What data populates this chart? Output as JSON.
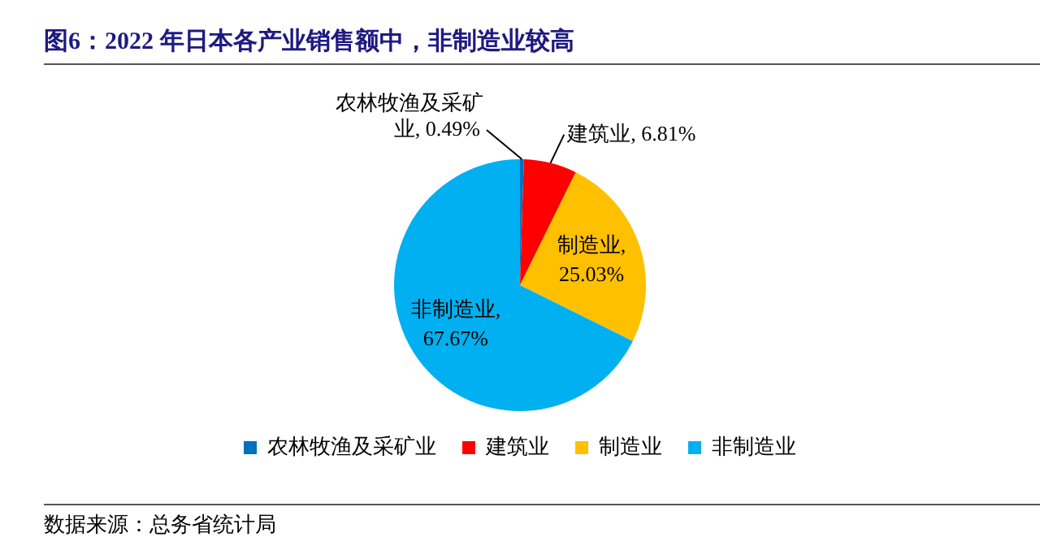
{
  "chart_data": {
    "type": "pie",
    "title": "图6：2022 年日本各产业销售额中，非制造业较高",
    "categories": [
      "农林牧渔及采矿业",
      "建筑业",
      "制造业",
      "非制造业"
    ],
    "values": [
      0.49,
      6.81,
      25.03,
      67.67
    ],
    "colors": [
      "#0070c0",
      "#ff0000",
      "#ffc000",
      "#00b0f0"
    ],
    "value_labels": [
      "农林牧渔及采矿业, 0.49%",
      "建筑业, 6.81%",
      "制造业, 25.03%",
      "非制造业, 67.67%"
    ],
    "legend": "bottom",
    "annotations": [
      "数据来源：总务省统计局"
    ]
  }
}
